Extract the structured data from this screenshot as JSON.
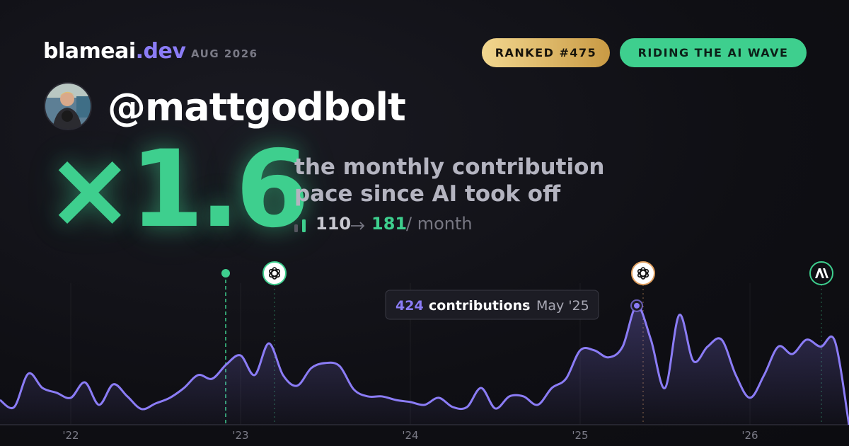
{
  "header": {
    "brand": "blameai",
    "brand_suffix": ".dev",
    "date": "AUG 2026",
    "badges": [
      "RANKED #475",
      "RIDING THE AI WAVE"
    ]
  },
  "profile": {
    "handle": "@mattgodbolt"
  },
  "headline": {
    "multiplier": "×1.6",
    "lines": [
      "the monthly contribution",
      "pace since AI took off"
    ],
    "pace_before": 110,
    "pace_after": 181,
    "pace_unit": "/ month"
  },
  "chart_data": {
    "type": "line",
    "categories": [
      null,
      null,
      null,
      null,
      null,
      "'22",
      null,
      null,
      null,
      null,
      null,
      null,
      null,
      null,
      null,
      null,
      null,
      "'23",
      null,
      null,
      null,
      null,
      null,
      null,
      null,
      null,
      null,
      null,
      null,
      "'24",
      null,
      null,
      null,
      null,
      null,
      null,
      null,
      null,
      null,
      null,
      null,
      "'25",
      null,
      null,
      null,
      null,
      null,
      null,
      null,
      null,
      null,
      null,
      null,
      "'26",
      null,
      null,
      null,
      null,
      null,
      null,
      null
    ],
    "series": [
      {
        "name": "contributions",
        "color": "#8b7cf6",
        "values": [
          88,
          63,
          182,
          131,
          114,
          96,
          151,
          71,
          144,
          101,
          56,
          76,
          96,
          131,
          177,
          164,
          215,
          247,
          177,
          290,
          177,
          139,
          202,
          220,
          209,
          126,
          101,
          101,
          88,
          81,
          71,
          96,
          63,
          63,
          131,
          58,
          101,
          101,
          71,
          131,
          164,
          265,
          265,
          240,
          278,
          424,
          303,
          131,
          391,
          227,
          278,
          303,
          177,
          96,
          177,
          278,
          252,
          303,
          278,
          298,
          0
        ]
      }
    ],
    "ylim": [
      0,
      600
    ],
    "tooltip": {
      "label": "contributions",
      "date": "May '25"
    }
  }
}
